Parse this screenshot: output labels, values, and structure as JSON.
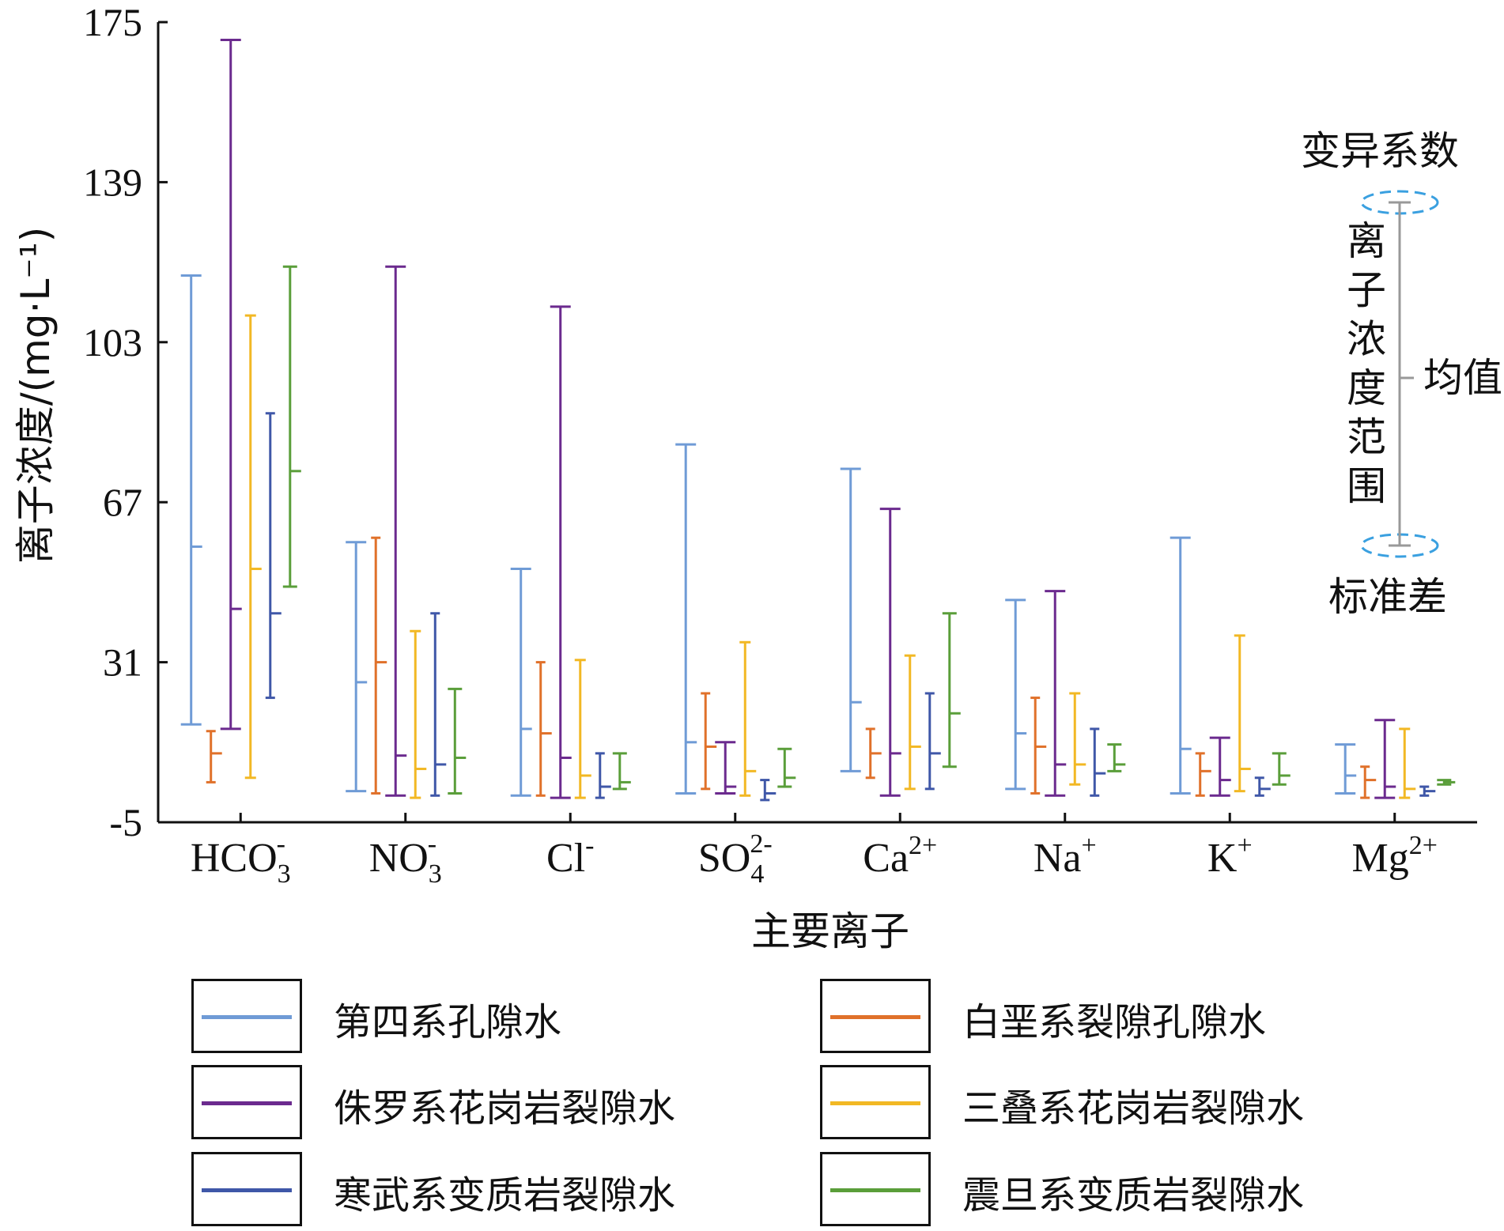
{
  "chart_data": {
    "type": "errorbar",
    "ylabel": "离子浓度/(mg·L⁻¹)",
    "xlabel": "主要离子",
    "ylim": [
      -5,
      175
    ],
    "yticks": [
      "175",
      "139",
      "103",
      "67",
      "31",
      "-5"
    ],
    "categories": [
      {
        "base": "HCO",
        "sub": "3",
        "sup": "-"
      },
      {
        "base": "NO",
        "sub": "3",
        "sup": "-"
      },
      {
        "base": "Cl",
        "sub": "",
        "sup": "-"
      },
      {
        "base": "SO",
        "sub": "4",
        "sup": "2-"
      },
      {
        "base": "Ca",
        "sub": "",
        "sup": "2+"
      },
      {
        "base": "Na",
        "sub": "",
        "sup": "+"
      },
      {
        "base": "K",
        "sub": "",
        "sup": "+"
      },
      {
        "base": "Mg",
        "sub": "",
        "sup": "2+"
      }
    ],
    "series": [
      {
        "name": "第四系孔隙水",
        "color": "#6f9bd6",
        "low": [
          17,
          2,
          1,
          1.5,
          6.5,
          2.5,
          1.5,
          1.5
        ],
        "high": [
          118,
          58,
          52,
          80,
          74.5,
          45,
          59,
          12.5
        ],
        "mean": [
          57,
          26.5,
          16,
          13,
          22,
          15,
          11.5,
          5.5
        ]
      },
      {
        "name": "白垩系裂隙孔隙水",
        "color": "#e0712a",
        "low": [
          4,
          1.5,
          1,
          2.5,
          5,
          1.5,
          1,
          0.5
        ],
        "high": [
          15.5,
          59,
          31,
          24,
          16,
          23,
          10.5,
          7.5
        ],
        "mean": [
          10.5,
          31,
          15,
          12,
          10.5,
          12,
          6.5,
          4.5
        ]
      },
      {
        "name": "侏罗系花岗岩裂隙水",
        "color": "#6b2a8e",
        "low": [
          16,
          1,
          0.5,
          1.5,
          1,
          1,
          1,
          0.5
        ],
        "high": [
          171,
          120,
          111,
          13,
          65.5,
          47,
          14,
          18
        ],
        "mean": [
          43,
          10,
          9.5,
          3,
          10.5,
          8,
          4.5,
          3
        ]
      },
      {
        "name": "三叠系花岗岩裂隙水",
        "color": "#f2b824",
        "low": [
          5,
          0.5,
          0.5,
          1,
          2.5,
          3.5,
          2,
          0.5
        ],
        "high": [
          109,
          38,
          31.5,
          35.5,
          32.5,
          24,
          37,
          16
        ],
        "mean": [
          52,
          7,
          5.5,
          6.5,
          12,
          8,
          7,
          2.5
        ]
      },
      {
        "name": "寒武系变质岩裂隙水",
        "color": "#3f57a8",
        "low": [
          23,
          1,
          0.5,
          0,
          2.5,
          1,
          1,
          1
        ],
        "high": [
          87,
          42,
          10.5,
          4.5,
          24,
          16,
          5,
          3
        ],
        "mean": [
          42,
          8,
          3,
          1.5,
          10.5,
          6,
          2.5,
          2
        ]
      },
      {
        "name": "震旦系变质岩裂隙水",
        "color": "#5a9e3a",
        "low": [
          48,
          1.5,
          2.5,
          3,
          7.5,
          6.5,
          3.5,
          3.5
        ],
        "high": [
          120,
          25,
          10.5,
          11.5,
          42,
          12.5,
          10.5,
          4.5
        ],
        "mean": [
          74,
          9.5,
          4,
          5,
          19.5,
          8,
          5.5,
          4
        ]
      }
    ],
    "annotation": {
      "top": "变异系数",
      "vertical": [
        "离",
        "子",
        "浓",
        "度",
        "范",
        "围"
      ],
      "mean": "均值",
      "bottom": "标准差"
    },
    "legend": {
      "order": [
        0,
        2,
        4,
        1,
        3,
        5
      ],
      "placement": "bottom"
    }
  }
}
